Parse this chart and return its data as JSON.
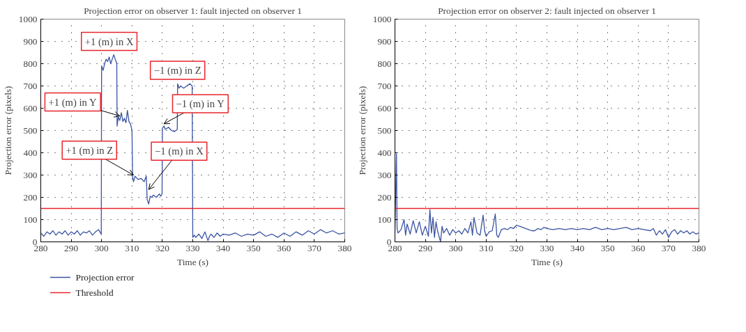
{
  "chart_data": [
    {
      "type": "line",
      "title": "Projection error on observer 1: fault injected on observer 1",
      "xlabel": "Time (s)",
      "ylabel": "Projection error (pixels)",
      "xlim": [
        280,
        380
      ],
      "ylim": [
        0,
        1000
      ],
      "xticks": [
        280,
        290,
        300,
        310,
        320,
        330,
        340,
        350,
        360,
        370,
        380
      ],
      "yticks": [
        0,
        100,
        200,
        300,
        400,
        500,
        600,
        700,
        800,
        900,
        1000
      ],
      "grid": true,
      "legend": "bottom",
      "marker": "none",
      "line_style": "solid",
      "series": [
        {
          "name": "Projection error",
          "color": "#3a53a4",
          "x": [
            280,
            281,
            282,
            283,
            284,
            285,
            286,
            287,
            288,
            289,
            290,
            291,
            292,
            293,
            294,
            295,
            296,
            297,
            298,
            299,
            299.9,
            300,
            300.5,
            301,
            301.5,
            302,
            302.5,
            303,
            303.5,
            304,
            304.5,
            305,
            305.1,
            305.5,
            306,
            306.5,
            307,
            307.5,
            308,
            308.5,
            309,
            309.5,
            310,
            310.2,
            310.5,
            311,
            312,
            313,
            314,
            314.7,
            315,
            315.5,
            316,
            316.5,
            317,
            318,
            319,
            319.5,
            319.9,
            320,
            320.5,
            321,
            322,
            323,
            324,
            324.9,
            325,
            325.5,
            326,
            327,
            328,
            329,
            329.8,
            330,
            330.5,
            331,
            332,
            333,
            334,
            335,
            335.5,
            336,
            337,
            338,
            339,
            340,
            342,
            344,
            346,
            348,
            350,
            352,
            354,
            356,
            358,
            360,
            362,
            364,
            366,
            368,
            370,
            372,
            374,
            376,
            378,
            380
          ],
          "values": [
            40,
            25,
            45,
            35,
            50,
            30,
            45,
            35,
            50,
            30,
            45,
            35,
            50,
            30,
            45,
            40,
            50,
            30,
            45,
            55,
            35,
            790,
            770,
            800,
            820,
            810,
            830,
            800,
            820,
            840,
            820,
            800,
            520,
            560,
            545,
            580,
            540,
            555,
            535,
            590,
            540,
            530,
            500,
            290,
            270,
            295,
            280,
            285,
            270,
            295,
            190,
            170,
            205,
            200,
            210,
            200,
            215,
            205,
            215,
            510,
            520,
            505,
            515,
            500,
            495,
            505,
            710,
            690,
            700,
            690,
            700,
            710,
            700,
            20,
            30,
            20,
            35,
            15,
            45,
            5,
            25,
            35,
            20,
            40,
            25,
            35,
            30,
            40,
            25,
            35,
            30,
            45,
            25,
            35,
            20,
            40,
            25,
            45,
            30,
            50,
            35,
            55,
            40,
            50,
            35,
            40
          ]
        }
      ],
      "ref_lines": [
        {
          "axis": "y",
          "value": 150,
          "label": "Threshold",
          "color": "#e8242b",
          "line_style": "solid"
        }
      ],
      "annotations": [
        {
          "text": "+1 (m) in X",
          "x": 304,
          "y": 840
        },
        {
          "text": "+1 (m) in Y",
          "x": 306,
          "y": 565
        },
        {
          "text": "+1 (m) in Z",
          "x": 310.5,
          "y": 300
        },
        {
          "text": "−1 (m) in X",
          "x": 315.5,
          "y": 235
        },
        {
          "text": "−1 (m) in Y",
          "x": 320.5,
          "y": 530
        },
        {
          "text": "−1 (m) in Z",
          "x": 324.5,
          "y": 705
        }
      ]
    },
    {
      "type": "line",
      "title": "Projection error on observer 2: fault injected on observer 1",
      "xlabel": "Time (s)",
      "ylabel": "Projection error (pixels)",
      "xlim": [
        280,
        380
      ],
      "ylim": [
        0,
        1000
      ],
      "xticks": [
        280,
        290,
        300,
        310,
        320,
        330,
        340,
        350,
        360,
        370,
        380
      ],
      "yticks": [
        0,
        100,
        200,
        300,
        400,
        500,
        600,
        700,
        800,
        900,
        1000
      ],
      "grid": true,
      "marker": "none",
      "line_style": "solid",
      "series": [
        {
          "color": "#3a53a4",
          "x": [
            280,
            280.5,
            280.7,
            281,
            282,
            283,
            283.5,
            284,
            285,
            286,
            287,
            288,
            289,
            290,
            291,
            291.5,
            292,
            292.5,
            293,
            293.5,
            294,
            295,
            295.5,
            296,
            297,
            298,
            299,
            300,
            301,
            302,
            303,
            304,
            305,
            305.5,
            306,
            307,
            308,
            309,
            309.5,
            310,
            311,
            312,
            313,
            313.5,
            314,
            315,
            316,
            317,
            318,
            319,
            320,
            321,
            322,
            323,
            324,
            325,
            326,
            327,
            328,
            329,
            330,
            332,
            334,
            336,
            338,
            340,
            342,
            344,
            346,
            348,
            350,
            352,
            354,
            356,
            358,
            360,
            362,
            364,
            365,
            366,
            367,
            368,
            369,
            370,
            371,
            372,
            373,
            374,
            375,
            376,
            377,
            378,
            379,
            380
          ],
          "values": [
            45,
            395,
            60,
            40,
            55,
            100,
            30,
            80,
            35,
            95,
            40,
            90,
            30,
            70,
            25,
            145,
            40,
            110,
            20,
            90,
            50,
            0,
            70,
            40,
            60,
            30,
            55,
            40,
            50,
            35,
            60,
            40,
            90,
            30,
            110,
            40,
            30,
            120,
            50,
            25,
            45,
            50,
            125,
            30,
            20,
            55,
            60,
            55,
            65,
            60,
            75,
            70,
            65,
            60,
            55,
            50,
            50,
            60,
            55,
            65,
            60,
            55,
            60,
            55,
            60,
            55,
            60,
            55,
            65,
            55,
            60,
            55,
            60,
            65,
            55,
            60,
            55,
            50,
            60,
            30,
            50,
            35,
            55,
            20,
            45,
            55,
            35,
            50,
            40,
            50,
            35,
            45,
            35,
            40
          ]
        }
      ],
      "ref_lines": [
        {
          "axis": "y",
          "value": 150,
          "color": "#e8242b",
          "line_style": "solid"
        }
      ]
    }
  ]
}
